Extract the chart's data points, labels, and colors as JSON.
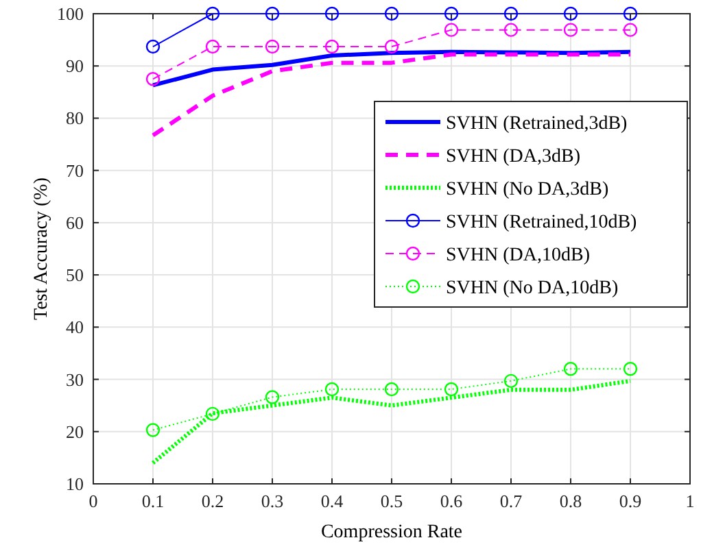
{
  "chart_data": {
    "type": "line",
    "xlabel": "Compression Rate",
    "ylabel": "Test Accuracy (%)",
    "x": [
      0.1,
      0.2,
      0.3,
      0.4,
      0.5,
      0.6,
      0.7,
      0.8,
      0.9
    ],
    "xlim": [
      0,
      1
    ],
    "xticks": [
      0,
      0.1,
      0.2,
      0.3,
      0.4,
      0.5,
      0.6,
      0.7,
      0.8,
      0.9,
      1
    ],
    "ylim": [
      10,
      100
    ],
    "yticks": [
      10,
      20,
      30,
      40,
      50,
      60,
      70,
      80,
      90,
      100
    ],
    "grid": true,
    "legend": "right",
    "series": [
      {
        "name": "SVHN (Retrained,3dB)",
        "color": "#0000ff",
        "line_style": "solid",
        "marker": "none",
        "values": [
          86.3,
          89.3,
          90.2,
          92,
          92.5,
          92.7,
          92.6,
          92.5,
          92.7
        ]
      },
      {
        "name": "SVHN (DA,3dB)",
        "color": "#ff00ff",
        "line_style": "dashed",
        "marker": "none",
        "values": [
          76.7,
          84.3,
          89,
          90.6,
          90.6,
          92.2,
          92.2,
          92.2,
          92.2
        ]
      },
      {
        "name": "SVHN (No DA,3dB)",
        "color": "#00ff00",
        "line_style": "dotted",
        "marker": "none",
        "values": [
          14,
          23.5,
          25,
          26.5,
          25,
          26.5,
          28,
          28,
          29.7
        ]
      },
      {
        "name": "SVHN (Retrained,10dB)",
        "color": "#0000ff",
        "line_style": "solid",
        "marker": "circle",
        "values": [
          93.7,
          100,
          100,
          100,
          100,
          100,
          100,
          100,
          100
        ]
      },
      {
        "name": "SVHN (DA,10dB)",
        "color": "#ff00ff",
        "line_style": "dashed",
        "marker": "circle",
        "values": [
          87.5,
          93.7,
          93.7,
          93.7,
          93.7,
          96.9,
          96.9,
          96.9,
          96.9
        ]
      },
      {
        "name": "SVHN (No DA,10dB)",
        "color": "#00ff00",
        "line_style": "dotted",
        "marker": "circle",
        "values": [
          20.3,
          23.4,
          26.6,
          28.1,
          28.1,
          28.1,
          29.7,
          32,
          32
        ]
      }
    ]
  }
}
